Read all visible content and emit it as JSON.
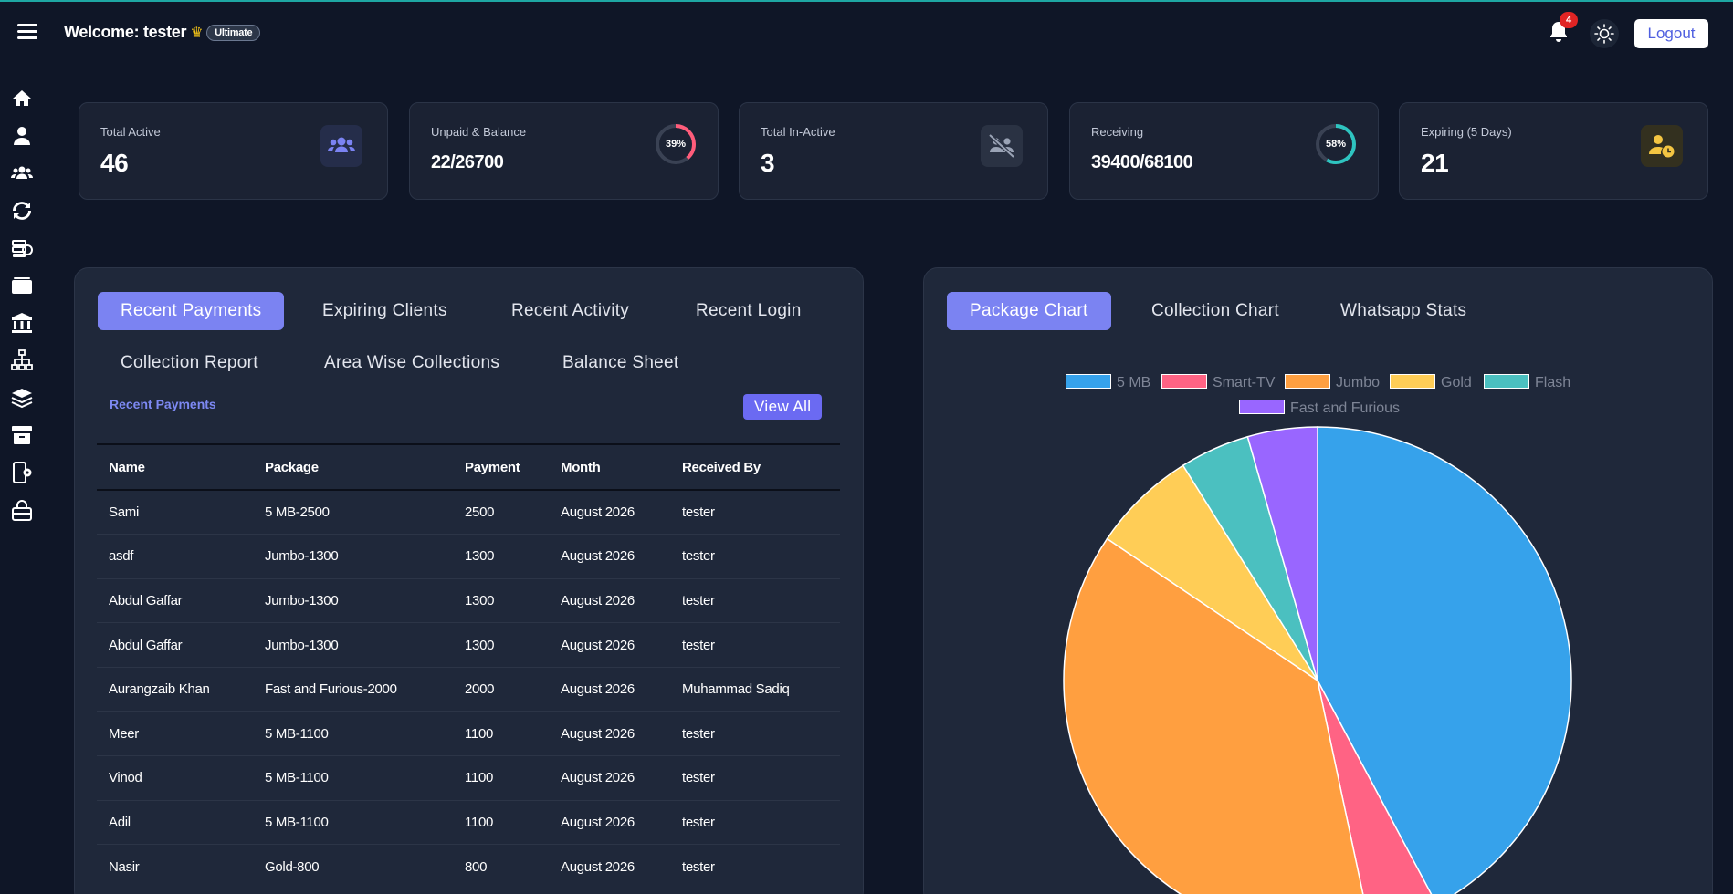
{
  "header": {
    "welcome": "Welcome: tester",
    "plan_badge": "Ultimate",
    "notification_count": "4",
    "logout_label": "Logout"
  },
  "sidebar": {
    "items": [
      {
        "icon": "home-icon"
      },
      {
        "icon": "user-icon"
      },
      {
        "icon": "users-icon"
      },
      {
        "icon": "renew-icon"
      },
      {
        "icon": "billing-icon"
      },
      {
        "icon": "wallet-icon"
      },
      {
        "icon": "bank-icon"
      },
      {
        "icon": "network-icon"
      },
      {
        "icon": "packages-icon"
      },
      {
        "icon": "archive-icon"
      },
      {
        "icon": "device-settings-icon"
      },
      {
        "icon": "lock-icon"
      }
    ]
  },
  "stats": [
    {
      "label": "Total Active",
      "value": "46",
      "icon": "users-group-icon",
      "icon_color": "#7b83f2"
    },
    {
      "label": "Unpaid & Balance",
      "value": "22/26700",
      "ring_label": "39%",
      "ring_percent": 39,
      "ring_color": "#ff5c7a"
    },
    {
      "label": "Total In-Active",
      "value": "3",
      "icon": "users-slash-icon",
      "icon_color": "#9aa3b5"
    },
    {
      "label": "Receiving",
      "value": "39400/68100",
      "ring_label": "58%",
      "ring_percent": 58,
      "ring_color": "#2ec4c0"
    },
    {
      "label": "Expiring (5 Days)",
      "value": "21",
      "icon": "user-clock-icon",
      "icon_color": "#f4c542"
    }
  ],
  "left_panel": {
    "tabs": [
      "Recent Payments",
      "Expiring Clients",
      "Recent Activity",
      "Recent Login",
      "Collection Report",
      "Area Wise Collections",
      "Balance Sheet"
    ],
    "active_tab": "Recent Payments",
    "section_title": "Recent Payments",
    "view_all_label": "View All",
    "columns": [
      "Name",
      "Package",
      "Payment",
      "Month",
      "Received By"
    ],
    "rows": [
      [
        "Sami",
        "5 MB-2500",
        "2500",
        "August 2026",
        "tester"
      ],
      [
        "asdf",
        "Jumbo-1300",
        "1300",
        "August 2026",
        "tester"
      ],
      [
        "Abdul Gaffar",
        "Jumbo-1300",
        "1300",
        "August 2026",
        "tester"
      ],
      [
        "Abdul Gaffar",
        "Jumbo-1300",
        "1300",
        "August 2026",
        "tester"
      ],
      [
        "Aurangzaib Khan",
        "Fast and Furious-2000",
        "2000",
        "August 2026",
        "Muhammad Sadiq"
      ],
      [
        "Meer",
        "5 MB-1100",
        "1100",
        "August 2026",
        "tester"
      ],
      [
        "Vinod",
        "5 MB-1100",
        "1100",
        "August 2026",
        "tester"
      ],
      [
        "Adil",
        "5 MB-1100",
        "1100",
        "August 2026",
        "tester"
      ],
      [
        "Nasir",
        "Gold-800",
        "800",
        "August 2026",
        "tester"
      ]
    ]
  },
  "right_panel": {
    "tabs": [
      "Package Chart",
      "Collection Chart",
      "Whatsapp Stats"
    ],
    "active_tab": "Package Chart"
  },
  "chart_data": {
    "type": "pie",
    "categories": [
      "5 MB",
      "Smart-TV",
      "Jumbo",
      "Gold",
      "Flash",
      "Fast and Furious"
    ],
    "values": [
      19,
      2,
      17,
      3,
      2,
      2
    ],
    "colors": [
      "#36a2eb",
      "#ff6384",
      "#ff9f40",
      "#ffcd56",
      "#4bc0c0",
      "#9966ff"
    ],
    "legend_position": "top"
  }
}
